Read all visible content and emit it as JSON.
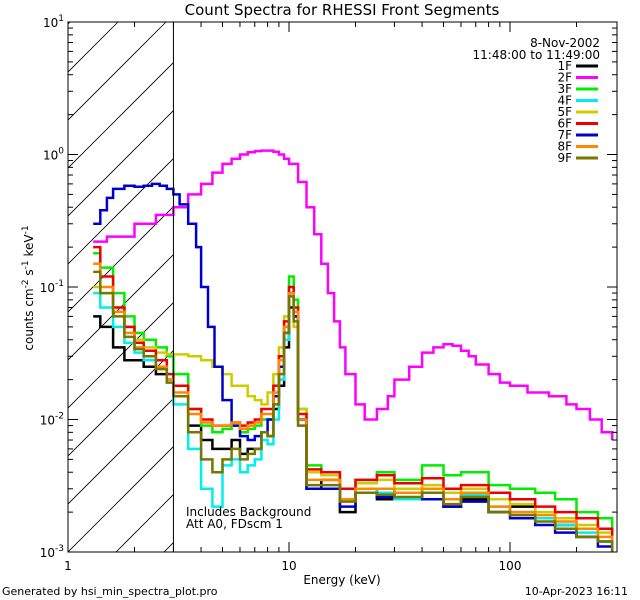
{
  "chart_data": {
    "type": "line",
    "title": "Count Spectra for RHESSI Front Segments",
    "xlabel": "Energy (keV)",
    "ylabel_parts": [
      "counts cm",
      "-2",
      " s",
      "-1",
      " keV",
      "-1"
    ],
    "x_scale": "log",
    "y_scale": "log",
    "xlim": [
      1,
      290
    ],
    "ylim": [
      0.001,
      10
    ],
    "x_ticks": [
      {
        "value": 1,
        "label": "1"
      },
      {
        "value": 10,
        "label": "10"
      },
      {
        "value": 100,
        "label": "100"
      }
    ],
    "y_ticks": [
      {
        "value": 0.001,
        "base": "10",
        "exp": "-3"
      },
      {
        "value": 0.01,
        "base": "10",
        "exp": "-2"
      },
      {
        "value": 0.1,
        "base": "10",
        "exp": "-1"
      },
      {
        "value": 1,
        "base": "10",
        "exp": "0"
      },
      {
        "value": 10,
        "base": "10",
        "exp": "1"
      }
    ],
    "legend_header": [
      "8-Nov-2002",
      "11:48:00 to 11:49:00"
    ],
    "shaded_region": {
      "x_from": 1,
      "x_to": 3,
      "style": "diagonal-hatch"
    },
    "annotations": [
      "Includes Background",
      "Att A0, FDscm 1"
    ],
    "series": [
      {
        "name": "1F",
        "color": "#000000",
        "x": [
          1.3,
          1.4,
          1.6,
          1.8,
          2.0,
          2.2,
          2.5,
          2.8,
          3.0,
          3.5,
          4.0,
          4.5,
          5.0,
          5.5,
          6.0,
          6.5,
          7.0,
          7.5,
          8.0,
          8.5,
          9.0,
          9.5,
          10.0,
          10.5,
          11.0,
          12,
          14,
          17,
          20,
          25,
          30,
          40,
          50,
          60,
          80,
          100,
          130,
          160,
          200,
          250,
          290
        ],
        "y": [
          0.06,
          0.05,
          0.035,
          0.028,
          0.028,
          0.025,
          0.022,
          0.02,
          0.015,
          0.009,
          0.007,
          0.006,
          0.006,
          0.007,
          0.0055,
          0.006,
          0.006,
          0.008,
          0.0075,
          0.012,
          0.018,
          0.035,
          0.07,
          0.06,
          0.01,
          0.003,
          0.0035,
          0.002,
          0.003,
          0.0025,
          0.003,
          0.0028,
          0.0022,
          0.0025,
          0.002,
          0.0022,
          0.0018,
          0.0016,
          0.0013,
          0.0012,
          0.0011
        ]
      },
      {
        "name": "2F",
        "color": "#ff00ff",
        "x": [
          1.3,
          1.5,
          2.0,
          2.5,
          3.0,
          3.5,
          4.0,
          4.5,
          5.0,
          5.5,
          6.0,
          6.5,
          7.0,
          7.5,
          8.0,
          8.5,
          9.0,
          9.5,
          10.0,
          11,
          12,
          13,
          14,
          15,
          16,
          17,
          18,
          20,
          22,
          25,
          28,
          30,
          35,
          40,
          45,
          50,
          55,
          60,
          65,
          70,
          80,
          90,
          100,
          120,
          150,
          180,
          200,
          230,
          260,
          290
        ],
        "y": [
          0.22,
          0.24,
          0.3,
          0.35,
          0.4,
          0.5,
          0.6,
          0.73,
          0.85,
          0.93,
          1.0,
          1.04,
          1.06,
          1.07,
          1.07,
          1.05,
          1.0,
          0.93,
          0.85,
          0.62,
          0.4,
          0.25,
          0.15,
          0.09,
          0.055,
          0.035,
          0.022,
          0.013,
          0.01,
          0.012,
          0.015,
          0.02,
          0.025,
          0.032,
          0.035,
          0.037,
          0.036,
          0.033,
          0.03,
          0.026,
          0.022,
          0.019,
          0.018,
          0.016,
          0.015,
          0.013,
          0.012,
          0.01,
          0.008,
          0.007
        ]
      },
      {
        "name": "3F",
        "color": "#00ee00",
        "x": [
          1.3,
          1.4,
          1.6,
          1.8,
          2.0,
          2.2,
          2.5,
          2.8,
          3.0,
          3.5,
          4.0,
          4.5,
          5.0,
          5.5,
          6.0,
          6.5,
          7.0,
          7.5,
          8.0,
          8.5,
          9.0,
          9.5,
          10.0,
          10.5,
          11.0,
          12,
          14,
          17,
          20,
          25,
          30,
          40,
          50,
          60,
          80,
          100,
          130,
          160,
          200,
          250,
          290
        ],
        "y": [
          0.18,
          0.14,
          0.09,
          0.06,
          0.045,
          0.04,
          0.035,
          0.03,
          0.022,
          0.012,
          0.009,
          0.008,
          0.0085,
          0.009,
          0.008,
          0.0085,
          0.009,
          0.01,
          0.01,
          0.015,
          0.025,
          0.05,
          0.12,
          0.08,
          0.012,
          0.0045,
          0.004,
          0.003,
          0.0035,
          0.004,
          0.0035,
          0.0045,
          0.0038,
          0.004,
          0.0032,
          0.003,
          0.0028,
          0.0025,
          0.002,
          0.0018,
          0.0015
        ]
      },
      {
        "name": "4F",
        "color": "#00eeee",
        "x": [
          1.3,
          1.4,
          1.6,
          1.8,
          2.0,
          2.2,
          2.5,
          2.8,
          3.0,
          3.5,
          4.0,
          4.5,
          5.0,
          5.5,
          6.0,
          6.5,
          7.0,
          7.5,
          8.0,
          8.5,
          9.0,
          9.5,
          10.0,
          10.5,
          11.0,
          12,
          14,
          17,
          20,
          25,
          30,
          40,
          50,
          60,
          80,
          100,
          130,
          160,
          200,
          250,
          290
        ],
        "y": [
          0.09,
          0.07,
          0.05,
          0.038,
          0.032,
          0.028,
          0.025,
          0.02,
          0.013,
          0.006,
          0.003,
          0.0022,
          0.0045,
          0.005,
          0.004,
          0.0045,
          0.005,
          0.007,
          0.0065,
          0.01,
          0.02,
          0.04,
          0.1,
          0.06,
          0.009,
          0.003,
          0.003,
          0.0025,
          0.003,
          0.0028,
          0.0025,
          0.003,
          0.0025,
          0.0027,
          0.0022,
          0.002,
          0.0018,
          0.0016,
          0.0014,
          0.0012,
          0.001
        ]
      },
      {
        "name": "5F",
        "color": "#cccc00",
        "x": [
          1.3,
          1.4,
          1.6,
          1.8,
          2.0,
          2.2,
          2.5,
          2.8,
          3.0,
          3.5,
          4.0,
          4.5,
          5.0,
          5.5,
          6.0,
          6.5,
          7.0,
          7.5,
          8.0,
          8.5,
          9.0,
          9.5,
          10.0,
          10.5,
          11.0,
          12,
          14,
          17,
          20,
          25,
          30,
          40,
          50,
          60,
          80,
          100,
          130,
          160,
          200,
          250,
          290
        ],
        "y": [
          0.1,
          0.09,
          0.07,
          0.05,
          0.04,
          0.035,
          0.032,
          0.031,
          0.031,
          0.03,
          0.028,
          0.025,
          0.022,
          0.018,
          0.018,
          0.015,
          0.014,
          0.013,
          0.016,
          0.022,
          0.035,
          0.06,
          0.09,
          0.05,
          0.012,
          0.004,
          0.0038,
          0.003,
          0.0033,
          0.0035,
          0.003,
          0.0032,
          0.0028,
          0.003,
          0.0025,
          0.0023,
          0.002,
          0.0018,
          0.0016,
          0.0014,
          0.0012
        ]
      },
      {
        "name": "6F",
        "color": "#ee0000",
        "x": [
          1.3,
          1.4,
          1.6,
          1.8,
          2.0,
          2.2,
          2.5,
          2.8,
          3.0,
          3.5,
          4.0,
          4.5,
          5.0,
          5.5,
          6.0,
          6.5,
          7.0,
          7.5,
          8.0,
          8.5,
          9.0,
          9.5,
          10.0,
          10.5,
          11.0,
          12,
          14,
          17,
          20,
          25,
          30,
          40,
          50,
          60,
          80,
          100,
          130,
          160,
          200,
          250,
          290
        ],
        "y": [
          0.2,
          0.12,
          0.07,
          0.05,
          0.038,
          0.033,
          0.028,
          0.022,
          0.018,
          0.012,
          0.01,
          0.009,
          0.009,
          0.0095,
          0.009,
          0.0095,
          0.01,
          0.012,
          0.012,
          0.018,
          0.03,
          0.055,
          0.1,
          0.07,
          0.011,
          0.0042,
          0.004,
          0.003,
          0.0035,
          0.0038,
          0.0033,
          0.0036,
          0.003,
          0.0032,
          0.0028,
          0.0025,
          0.0022,
          0.002,
          0.0018,
          0.0015,
          0.0013
        ]
      },
      {
        "name": "7F",
        "color": "#0000cc",
        "x": [
          1.3,
          1.4,
          1.5,
          1.6,
          1.8,
          2.0,
          2.2,
          2.4,
          2.6,
          2.8,
          3.0,
          3.2,
          3.5,
          3.8,
          4.0,
          4.3,
          4.6,
          5.0,
          5.5,
          6.0,
          6.5,
          7.0,
          7.5,
          8.0,
          8.5,
          9.0,
          9.5,
          10.0,
          10.5,
          11.0,
          12,
          14,
          17,
          20,
          25,
          30,
          40,
          50,
          60,
          80,
          100,
          130,
          160,
          200,
          250,
          290
        ],
        "y": [
          0.3,
          0.38,
          0.47,
          0.55,
          0.58,
          0.57,
          0.58,
          0.6,
          0.58,
          0.55,
          0.5,
          0.42,
          0.3,
          0.2,
          0.1,
          0.05,
          0.025,
          0.014,
          0.009,
          0.0075,
          0.007,
          0.0075,
          0.008,
          0.01,
          0.015,
          0.025,
          0.045,
          0.09,
          0.06,
          0.01,
          0.003,
          0.003,
          0.0022,
          0.0028,
          0.0026,
          0.0028,
          0.0025,
          0.0022,
          0.0024,
          0.002,
          0.0018,
          0.0016,
          0.0014,
          0.0013,
          0.0011,
          0.001
        ]
      },
      {
        "name": "8F",
        "color": "#ff8800",
        "x": [
          1.3,
          1.4,
          1.6,
          1.8,
          2.0,
          2.2,
          2.5,
          2.8,
          3.0,
          3.5,
          4.0,
          4.5,
          5.0,
          5.5,
          6.0,
          6.5,
          7.0,
          7.5,
          8.0,
          8.5,
          9.0,
          9.5,
          10.0,
          10.5,
          11.0,
          12,
          14,
          17,
          20,
          25,
          30,
          40,
          50,
          60,
          80,
          100,
          130,
          160,
          200,
          250,
          290
        ],
        "y": [
          0.15,
          0.1,
          0.065,
          0.045,
          0.035,
          0.03,
          0.025,
          0.02,
          0.016,
          0.011,
          0.0095,
          0.009,
          0.009,
          0.0095,
          0.0085,
          0.009,
          0.0095,
          0.011,
          0.011,
          0.016,
          0.028,
          0.05,
          0.09,
          0.065,
          0.01,
          0.0035,
          0.0035,
          0.0025,
          0.003,
          0.003,
          0.0028,
          0.003,
          0.0025,
          0.0028,
          0.0022,
          0.002,
          0.0019,
          0.0017,
          0.0015,
          0.0013,
          0.0011
        ]
      },
      {
        "name": "9F",
        "color": "#777700",
        "x": [
          1.3,
          1.4,
          1.6,
          1.8,
          2.0,
          2.2,
          2.5,
          2.8,
          3.0,
          3.5,
          4.0,
          4.5,
          5.0,
          5.5,
          6.0,
          6.5,
          7.0,
          7.5,
          8.0,
          8.5,
          9.0,
          9.5,
          10.0,
          10.5,
          11.0,
          12,
          14,
          17,
          20,
          25,
          30,
          40,
          50,
          60,
          80,
          100,
          130,
          160,
          200,
          250,
          290
        ],
        "y": [
          0.13,
          0.09,
          0.06,
          0.042,
          0.034,
          0.03,
          0.024,
          0.019,
          0.015,
          0.008,
          0.005,
          0.004,
          0.005,
          0.006,
          0.005,
          0.0055,
          0.006,
          0.008,
          0.0075,
          0.013,
          0.022,
          0.045,
          0.085,
          0.055,
          0.009,
          0.0032,
          0.0032,
          0.0024,
          0.0028,
          0.0027,
          0.0026,
          0.0028,
          0.0023,
          0.0026,
          0.002,
          0.0019,
          0.0017,
          0.0015,
          0.0013,
          0.0012,
          0.001
        ]
      }
    ]
  },
  "footer": {
    "left": "Generated by hsi_min_spectra_plot.pro",
    "right": "10-Apr-2023 16:11"
  }
}
